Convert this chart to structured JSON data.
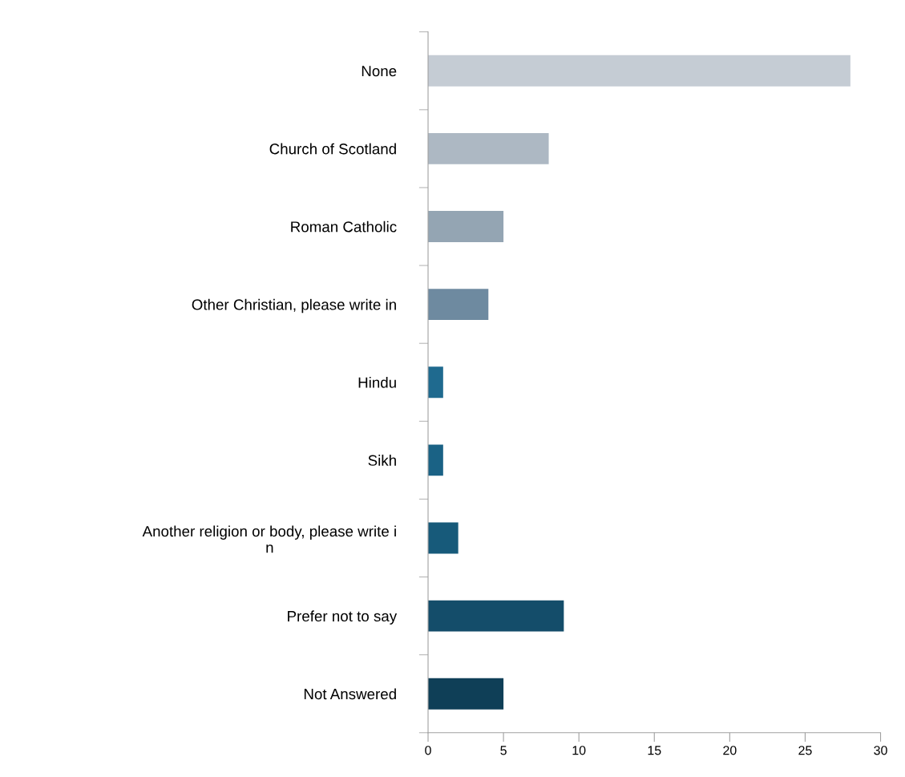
{
  "chart_data": {
    "type": "bar",
    "orientation": "horizontal",
    "categories": [
      "None",
      "Church of Scotland",
      "Roman Catholic",
      "Other Christian, please write in",
      "Hindu",
      "Sikh",
      "Another religion or body, please write i\nn",
      "Prefer not to say",
      "Not Answered"
    ],
    "values": [
      28,
      8,
      5,
      4,
      1,
      1,
      2,
      9,
      5
    ],
    "colors": [
      "#c5ccd4",
      "#adb8c3",
      "#94a5b3",
      "#6e8aa0",
      "#1f6a8f",
      "#1a6285",
      "#175a7a",
      "#144d6a",
      "#0f3f57"
    ],
    "xlim": [
      0,
      30
    ],
    "xticks": [
      0,
      5,
      10,
      15,
      20,
      25,
      30
    ],
    "grid": false,
    "legend": false
  }
}
